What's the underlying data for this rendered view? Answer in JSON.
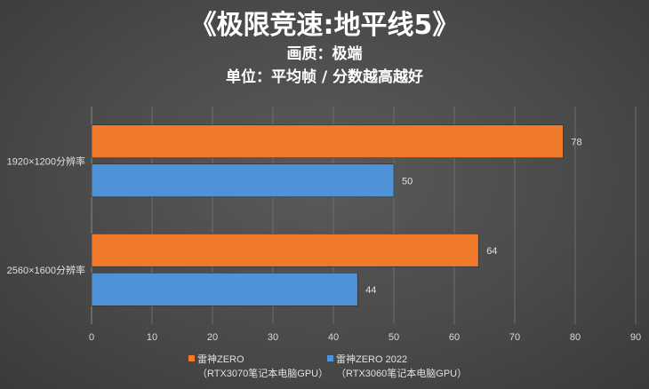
{
  "chart_data": {
    "type": "bar",
    "orientation": "horizontal",
    "title": "《极限竞速:地平线5》",
    "subtitle_lines": [
      "画质：极端",
      "单位：平均帧 / 分数越高越好"
    ],
    "categories": [
      "1920×1200分辨率",
      "2560×1600分辨率"
    ],
    "series": [
      {
        "name": "雷神ZERO",
        "name_line2": "（RTX3070笔记本电脑GPU）",
        "color": "#f07a2a",
        "values": [
          78,
          64
        ]
      },
      {
        "name": "雷神ZERO 2022",
        "name_line2": "（RTX3060笔记本电脑GPU）",
        "color": "#4e93d8",
        "values": [
          50,
          44
        ]
      }
    ],
    "xlim": [
      0,
      90
    ],
    "xticks": [
      0,
      10,
      20,
      30,
      40,
      50,
      60,
      70,
      80,
      90
    ],
    "grid": true,
    "legend_position": "bottom"
  }
}
